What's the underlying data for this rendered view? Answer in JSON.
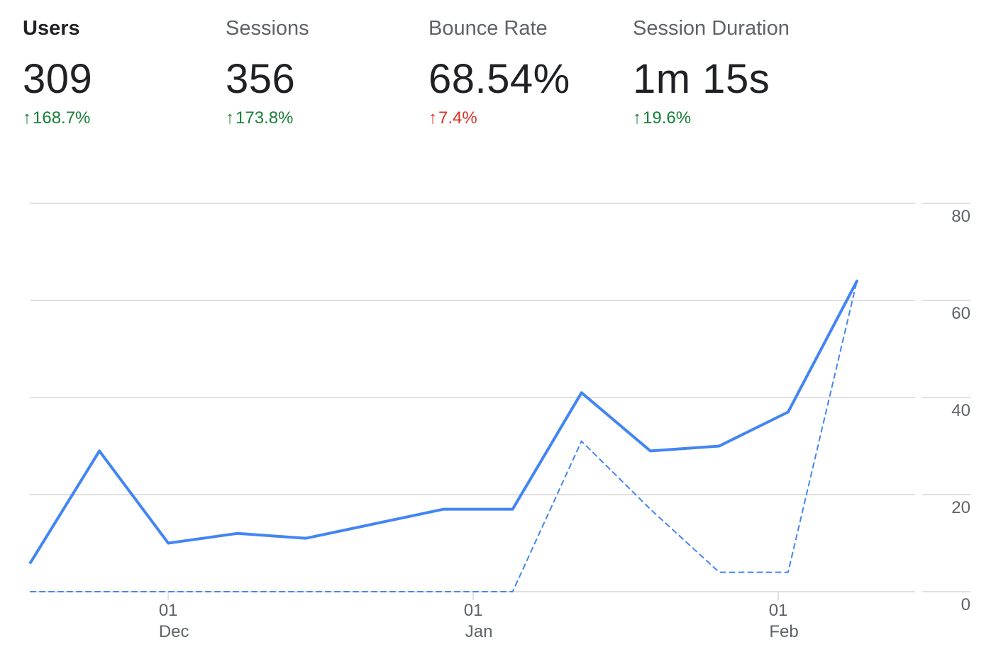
{
  "metrics": [
    {
      "label": "Users",
      "value": "309",
      "change": "168.7%",
      "direction": "up",
      "change_color": "#188038",
      "active": true
    },
    {
      "label": "Sessions",
      "value": "356",
      "change": "173.8%",
      "direction": "up",
      "change_color": "#188038",
      "active": false
    },
    {
      "label": "Bounce Rate",
      "value": "68.54%",
      "change": "7.4%",
      "direction": "up",
      "change_color": "#d93025",
      "active": false
    },
    {
      "label": "Session Duration",
      "value": "1m 15s",
      "change": "19.6%",
      "direction": "up",
      "change_color": "#188038",
      "active": false
    }
  ],
  "colors": {
    "primary_series": "#4285f4",
    "gridline": "#e0e0e0",
    "axis_text": "#5f6368"
  },
  "chart_data": {
    "type": "line",
    "x_ticks": [
      {
        "day": "01",
        "month": "Dec",
        "date": "2019-12-01"
      },
      {
        "day": "01",
        "month": "Jan",
        "date": "2020-01-01"
      },
      {
        "day": "01",
        "month": "Feb",
        "date": "2020-02-01"
      }
    ],
    "x": [
      "2019-11-17",
      "2019-11-24",
      "2019-12-01",
      "2019-12-08",
      "2019-12-15",
      "2019-12-22",
      "2019-12-29",
      "2020-01-05",
      "2020-01-12",
      "2020-01-19",
      "2020-01-26",
      "2020-02-02",
      "2020-02-09"
    ],
    "y_ticks": [
      0,
      20,
      40,
      60,
      80
    ],
    "ylim": [
      0,
      80
    ],
    "y_axis_position": "right",
    "grid": true,
    "series": [
      {
        "style": "solid",
        "values": [
          6,
          29,
          10,
          12,
          11,
          14,
          17,
          17,
          41,
          29,
          30,
          37,
          64
        ]
      },
      {
        "style": "dashed",
        "values": [
          0,
          0,
          0,
          0,
          0,
          0,
          0,
          0,
          31,
          17,
          4,
          4,
          64
        ]
      }
    ]
  }
}
